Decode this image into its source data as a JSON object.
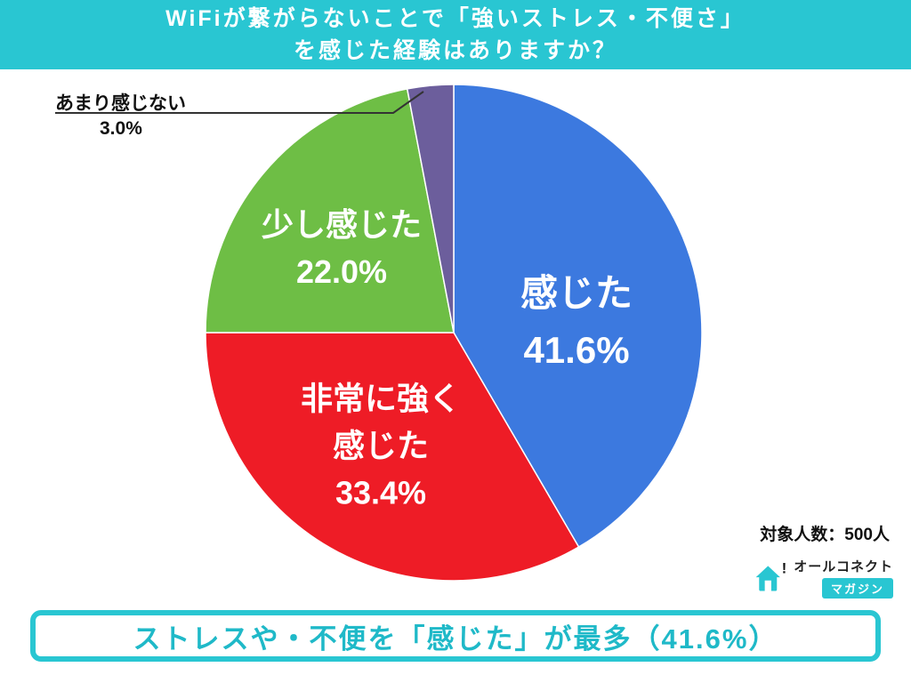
{
  "header": {
    "line1": "WiFiが繋がらないことで「強いストレス・不便さ」",
    "line2": "を感じた経験はありますか？"
  },
  "chart_data": {
    "type": "pie",
    "title": "WiFiが繋がらないことで「強いストレス・不便さ」を感じた経験はありますか？",
    "start_angle": "top",
    "direction": "clockwise",
    "slices": [
      {
        "label": "感じた",
        "value": 41.6,
        "pct_label": "41.6%",
        "color": "#3C79DF"
      },
      {
        "label": "非常に強く感じた",
        "label_line1": "非常に強く",
        "label_line2": "感じた",
        "value": 33.4,
        "pct_label": "33.4%",
        "color": "#EE1C26"
      },
      {
        "label": "少し感じた",
        "value": 22.0,
        "pct_label": "22.0%",
        "color": "#6EBE45"
      },
      {
        "label": "あまり感じない",
        "value": 3.0,
        "pct_label": "3.0%",
        "color": "#6C5E9C"
      }
    ],
    "sample_note": "対象人数：500人"
  },
  "callout": {
    "label": "あまり感じない",
    "value": "3.0%"
  },
  "footer": {
    "sample_note": "対象人数：500人"
  },
  "logo": {
    "brand": "オールコネクト",
    "magazine": "マガジン"
  },
  "banner": {
    "text": "ストレスや・不便を「感じた」が最多（41.6%）"
  }
}
